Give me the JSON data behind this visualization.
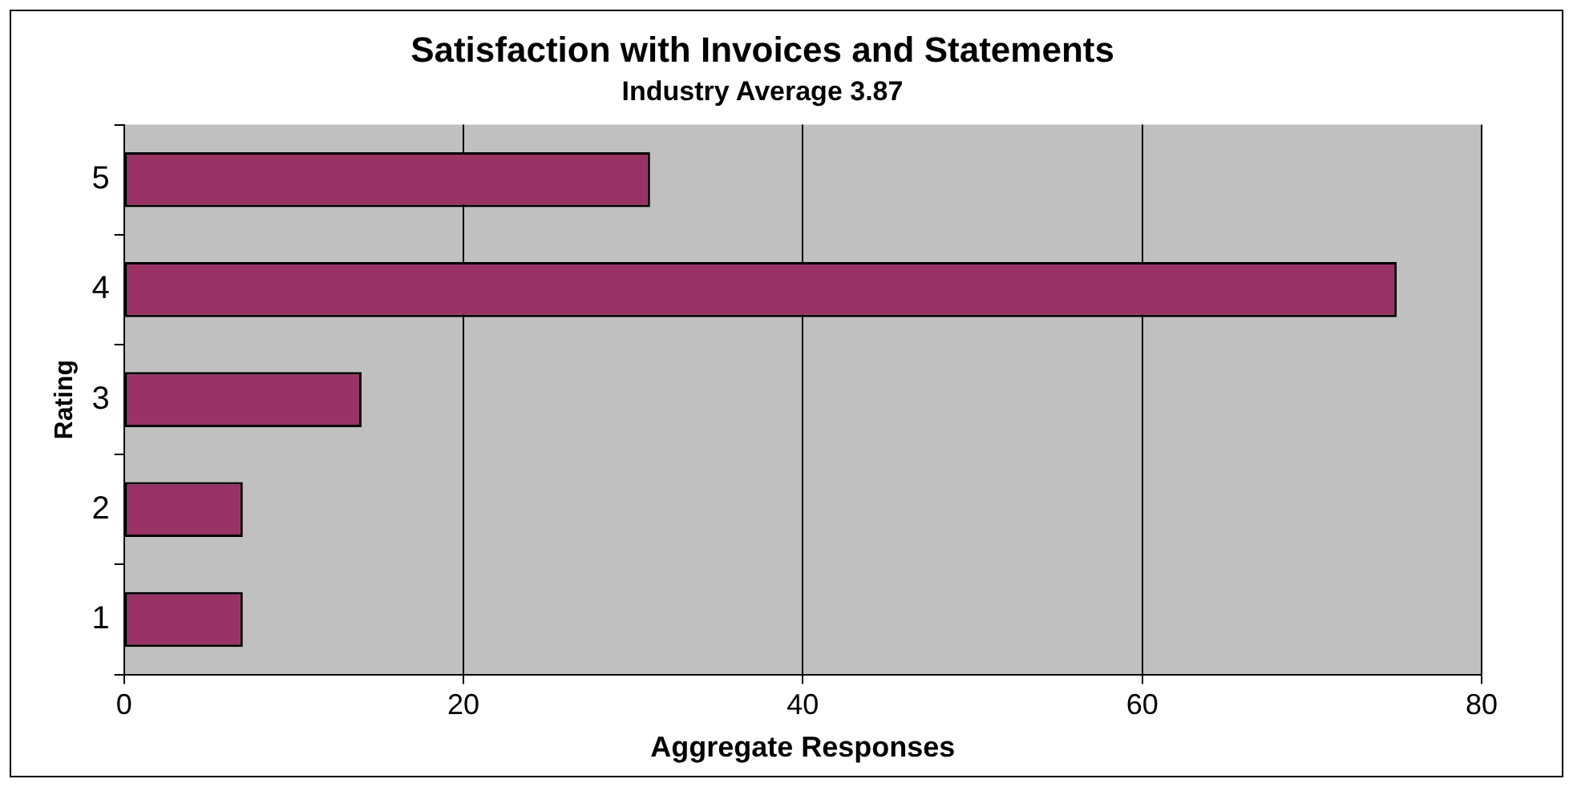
{
  "chart_data": {
    "type": "bar",
    "orientation": "horizontal",
    "title": "Satisfaction with Invoices and Statements",
    "subtitle": "Industry Average 3.87",
    "xlabel": "Aggregate Responses",
    "ylabel": "Rating",
    "categories": [
      "5",
      "4",
      "3",
      "2",
      "1"
    ],
    "values": [
      31,
      75,
      14,
      7,
      7
    ],
    "color": "#993366",
    "xlim": [
      0,
      80
    ],
    "xticks": [
      0,
      20,
      40,
      60,
      80
    ],
    "grid": "x",
    "legend": false
  }
}
